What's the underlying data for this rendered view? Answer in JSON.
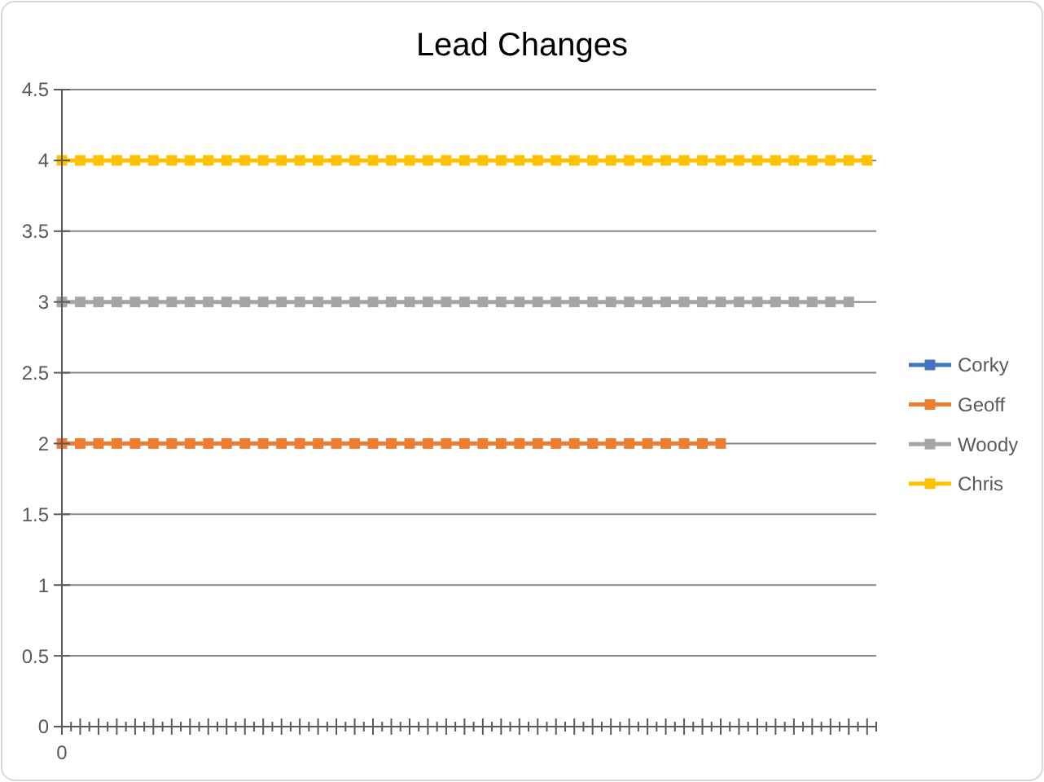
{
  "chart_data": {
    "type": "line",
    "title": "Lead Changes",
    "marker": "square",
    "line_style": "solid",
    "grid": "y",
    "legend": "right",
    "categories": [
      "0",
      null,
      null,
      null,
      null,
      null,
      null,
      null,
      null,
      null,
      null,
      null,
      null,
      null,
      null,
      null,
      null,
      null,
      null,
      null,
      null,
      null,
      null,
      null,
      null,
      null,
      null,
      null,
      null,
      null,
      null,
      null,
      null,
      null,
      null,
      null,
      null,
      null,
      null,
      null,
      null,
      null,
      null,
      null,
      null
    ],
    "ylim": [
      0,
      4.5
    ],
    "yticks": [
      0,
      0.5,
      1,
      1.5,
      2,
      2.5,
      3,
      3.5,
      4,
      4.5
    ],
    "series": [
      {
        "name": "Corky",
        "color": "#4472c4",
        "values": [
          null,
          null,
          null,
          null,
          null,
          null,
          null,
          null,
          null,
          null,
          null,
          null,
          null,
          null,
          null,
          null,
          null,
          null,
          null,
          null,
          null,
          null,
          null,
          null,
          null,
          null,
          null,
          null,
          null,
          null,
          null,
          null,
          null,
          null,
          null,
          null,
          null,
          null,
          null,
          null,
          null,
          null,
          null,
          null,
          null
        ]
      },
      {
        "name": "Geoff",
        "color": "#ed7d31",
        "values": [
          2,
          2,
          2,
          2,
          2,
          2,
          2,
          2,
          2,
          2,
          2,
          2,
          2,
          2,
          2,
          2,
          2,
          2,
          2,
          2,
          2,
          2,
          2,
          2,
          2,
          2,
          2,
          2,
          2,
          2,
          2,
          2,
          2,
          2,
          2,
          2,
          2,
          null,
          null,
          null,
          null,
          null,
          null,
          null,
          null
        ]
      },
      {
        "name": "Woody",
        "color": "#a5a5a5",
        "values": [
          3,
          3,
          3,
          3,
          3,
          3,
          3,
          3,
          3,
          3,
          3,
          3,
          3,
          3,
          3,
          3,
          3,
          3,
          3,
          3,
          3,
          3,
          3,
          3,
          3,
          3,
          3,
          3,
          3,
          3,
          3,
          3,
          3,
          3,
          3,
          3,
          3,
          3,
          3,
          3,
          3,
          3,
          3,
          3,
          null
        ]
      },
      {
        "name": "Chris",
        "color": "#ffc000",
        "values": [
          4,
          4,
          4,
          4,
          4,
          4,
          4,
          4,
          4,
          4,
          4,
          4,
          4,
          4,
          4,
          4,
          4,
          4,
          4,
          4,
          4,
          4,
          4,
          4,
          4,
          4,
          4,
          4,
          4,
          4,
          4,
          4,
          4,
          4,
          4,
          4,
          4,
          4,
          4,
          4,
          4,
          4,
          4,
          4,
          4
        ]
      }
    ]
  }
}
